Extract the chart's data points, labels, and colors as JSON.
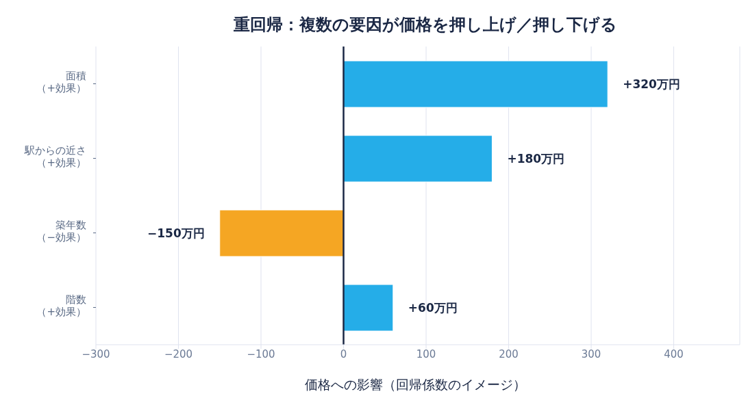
{
  "chart_data": {
    "type": "bar",
    "orientation": "horizontal",
    "title": "重回帰：複数の要因が価格を押し上げ／押し下げる",
    "xlabel": "価格への影響（回帰係数のイメージ）",
    "categories": [
      "面積（+効果）",
      "駅からの近さ（+効果）",
      "築年数（−効果）",
      "階数（+効果）"
    ],
    "values": [
      320,
      180,
      -150,
      60
    ],
    "colors": [
      "#25ade8",
      "#25ade8",
      "#f5a623",
      "#25ade8"
    ],
    "value_labels": [
      "+320万円",
      "+180万円",
      "−150万円",
      "+60万円"
    ],
    "xlim": [
      -300,
      480
    ],
    "xticks": [
      {
        "value": -300,
        "label": "−300"
      },
      {
        "value": -200,
        "label": "−200"
      },
      {
        "value": -100,
        "label": "−100"
      },
      0,
      100,
      200,
      300,
      400
    ],
    "ref_lines": [
      {
        "axis": "x",
        "value": 0,
        "label": null,
        "color": "#1a2744"
      }
    ],
    "grid": "x"
  }
}
